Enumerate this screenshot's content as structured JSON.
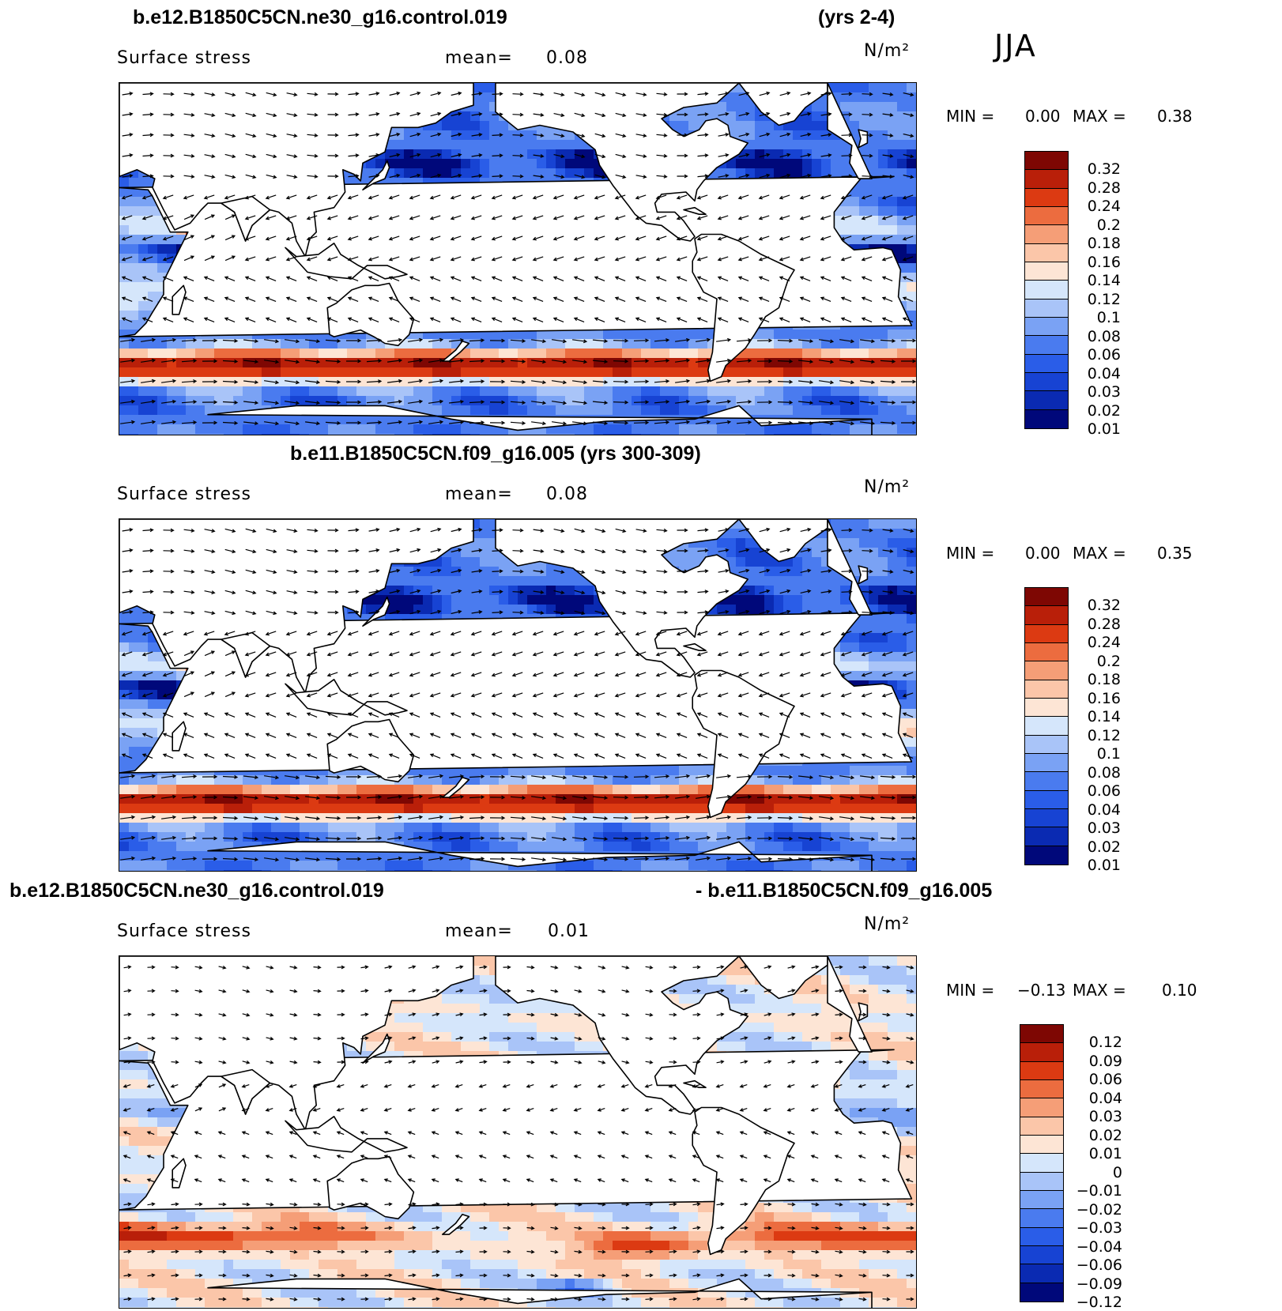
{
  "season": "JJA",
  "seq_colors": [
    "#00087a",
    "#0a2ab2",
    "#1743d3",
    "#2a5de8",
    "#4a7bef",
    "#7aa2f4",
    "#a9c4f8",
    "#d5e6fb",
    "#fde5d5",
    "#fbc6a9",
    "#f59e77",
    "#ec6c3f",
    "#dc3a12",
    "#b91f09",
    "#7e0703"
  ],
  "div_colors": [
    "#00087a",
    "#0a2ab2",
    "#1743d3",
    "#2a5de8",
    "#4a7bef",
    "#7aa2f4",
    "#a9c4f8",
    "#d5e6fb",
    "#fde5d5",
    "#fbc6a9",
    "#f59e77",
    "#ec6c3f",
    "#dc3a12",
    "#b91f09",
    "#7e0703"
  ],
  "panels": [
    {
      "title_left": "b.e12.B1850C5CN.ne30_g16.control.019",
      "title_right": "(yrs 2-4)",
      "variable": "Surface stress",
      "mean_label": "mean=",
      "mean_value": "0.08",
      "units": "N/m²",
      "min_label": "MIN =",
      "min_value": "0.00",
      "max_label": "MAX =",
      "max_value": "0.38",
      "levels": [
        "0.32",
        "0.28",
        "0.24",
        "0.2",
        "0.18",
        "0.16",
        "0.14",
        "0.12",
        "0.1",
        "0.08",
        "0.06",
        "0.04",
        "0.03",
        "0.02",
        "0.01"
      ]
    },
    {
      "title_left": "b.e11.B1850C5CN.f09_g16.005 (yrs 300-309)",
      "title_right": "",
      "variable": "Surface stress",
      "mean_label": "mean=",
      "mean_value": "0.08",
      "units": "N/m²",
      "min_label": "MIN =",
      "min_value": "0.00",
      "max_label": "MAX =",
      "max_value": "0.35",
      "levels": [
        "0.32",
        "0.28",
        "0.24",
        "0.2",
        "0.18",
        "0.16",
        "0.14",
        "0.12",
        "0.1",
        "0.08",
        "0.06",
        "0.04",
        "0.03",
        "0.02",
        "0.01"
      ]
    },
    {
      "title_left": "b.e12.B1850C5CN.ne30_g16.control.019",
      "title_right": "- b.e11.B1850C5CN.f09_g16.005",
      "variable": "Surface stress",
      "mean_label": "mean=",
      "mean_value": "0.01",
      "units": "N/m²",
      "min_label": "MIN =",
      "min_value": "−0.13",
      "max_label": "MAX =",
      "max_value": "0.10",
      "levels": [
        "0.12",
        "0.09",
        "0.06",
        "0.04",
        "0.03",
        "0.02",
        "0.01",
        "0",
        "−0.01",
        "−0.02",
        "−0.03",
        "−0.04",
        "−0.06",
        "−0.09",
        "−0.12"
      ]
    }
  ]
}
